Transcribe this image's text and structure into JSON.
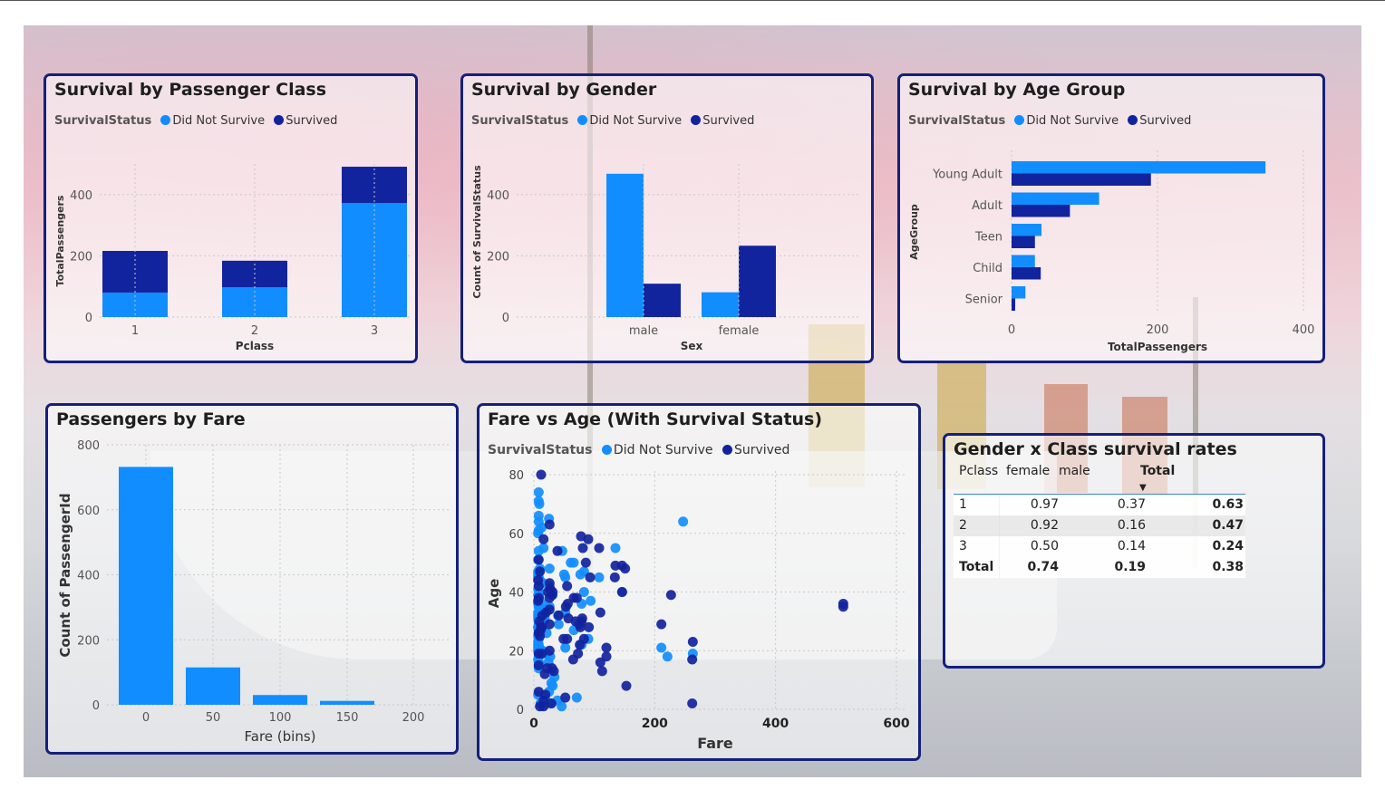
{
  "colors": {
    "did_not_survive": "#118dff",
    "survived": "#12239e",
    "border": "#14207a"
  },
  "legend": {
    "field": "SurvivalStatus",
    "did_not_survive": "Did Not Survive",
    "survived": "Survived"
  },
  "panel_class": {
    "title": "Survival by Passenger Class"
  },
  "panel_gender": {
    "title": "Survival by Gender"
  },
  "panel_age": {
    "title": "Survival by Age Group"
  },
  "panel_fare": {
    "title": "Passengers by Fare"
  },
  "panel_scatter": {
    "title": "Fare vs Age (With Survival Status)"
  },
  "panel_table": {
    "title": "Gender x Class survival rates",
    "headers": [
      "Pclass",
      "female",
      "male",
      "Total"
    ],
    "rows": [
      [
        "1",
        "0.97",
        "0.37",
        "0.63"
      ],
      [
        "2",
        "0.92",
        "0.16",
        "0.47"
      ],
      [
        "3",
        "0.50",
        "0.14",
        "0.24"
      ],
      [
        "Total",
        "0.74",
        "0.19",
        "0.38"
      ]
    ]
  },
  "chart_data": [
    {
      "type": "bar",
      "stacked": true,
      "categories": [
        "1",
        "2",
        "3"
      ],
      "series": [
        {
          "name": "Did Not Survive",
          "values": [
            80,
            97,
            372
          ]
        },
        {
          "name": "Survived",
          "values": [
            136,
            87,
            119
          ]
        }
      ],
      "xlabel": "Pclass",
      "ylabel": "TotalPassengers",
      "yticks": [
        0,
        200,
        400
      ],
      "ylim": [
        0,
        500
      ],
      "grid": true,
      "legend": "top-left"
    },
    {
      "type": "bar",
      "categories": [
        "male",
        "female"
      ],
      "series": [
        {
          "name": "Did Not Survive",
          "values": [
            468,
            81
          ]
        },
        {
          "name": "Survived",
          "values": [
            109,
            233
          ]
        }
      ],
      "xlabel": "Sex",
      "ylabel": "Count of SurvivalStatus",
      "yticks": [
        0,
        200,
        400
      ],
      "ylim": [
        0,
        500
      ],
      "grid": true,
      "legend": "top-left"
    },
    {
      "type": "bar",
      "orientation": "horizontal",
      "categories": [
        "Young Adult",
        "Adult",
        "Teen",
        "Child",
        "Senior"
      ],
      "series": [
        {
          "name": "Did Not Survive",
          "values": [
            348,
            120,
            41,
            32,
            19
          ]
        },
        {
          "name": "Survived",
          "values": [
            191,
            80,
            32,
            40,
            5
          ]
        }
      ],
      "xlabel": "TotalPassengers",
      "ylabel": "AgeGroup",
      "xticks": [
        0,
        200,
        400
      ],
      "xlim": [
        0,
        410
      ],
      "grid": true,
      "legend": "top-left"
    },
    {
      "type": "bar",
      "categories": [
        "0",
        "50",
        "100",
        "150",
        "200"
      ],
      "values": [
        732,
        115,
        30,
        12,
        0
      ],
      "xlabel": "Fare (bins)",
      "ylabel": "Count of PassengerId",
      "yticks": [
        0,
        200,
        400,
        600,
        800
      ],
      "ylim": [
        0,
        800
      ],
      "grid": true
    },
    {
      "type": "scatter",
      "xlabel": "Fare",
      "ylabel": "Age",
      "xticks": [
        0,
        200,
        400,
        600
      ],
      "yticks": [
        0,
        20,
        40,
        60,
        80
      ],
      "xlim": [
        0,
        600
      ],
      "ylim": [
        0,
        80
      ],
      "series": [
        {
          "name": "Did Not Survive",
          "points": [
            [
              7,
              22
            ],
            [
              8,
              35
            ],
            [
              8,
              54
            ],
            [
              21,
              2
            ],
            [
              8,
              27
            ],
            [
              7,
              20
            ],
            [
              31,
              39
            ],
            [
              8,
              14
            ],
            [
              16,
              55
            ],
            [
              29,
              2
            ],
            [
              18,
              31
            ],
            [
              26,
              35
            ],
            [
              13,
              34
            ],
            [
              7,
              28
            ],
            [
              8,
              66
            ],
            [
              8,
              42
            ],
            [
              52,
              21
            ],
            [
              8,
              18
            ],
            [
              21,
              19
            ],
            [
              146,
              40
            ],
            [
              7,
              28
            ],
            [
              9,
              21
            ],
            [
              52,
              45
            ],
            [
              83,
              40
            ],
            [
              8,
              61
            ],
            [
              9,
              70
            ],
            [
              9,
              40
            ],
            [
              8,
              26
            ],
            [
              8,
              71
            ],
            [
              7,
              45
            ],
            [
              10,
              48
            ],
            [
              79,
              36
            ],
            [
              8,
              26
            ],
            [
              8,
              24
            ],
            [
              7,
              32
            ],
            [
              15,
              30
            ],
            [
              8,
              29
            ],
            [
              8,
              64
            ],
            [
              7,
              36
            ],
            [
              61,
              50
            ],
            [
              15,
              19
            ],
            [
              7,
              23
            ],
            [
              14,
              20
            ],
            [
              24,
              16
            ],
            [
              7,
              47
            ],
            [
              25,
              65
            ],
            [
              7,
              51
            ],
            [
              7,
              60
            ],
            [
              10,
              44
            ],
            [
              8,
              30
            ],
            [
              77,
              46
            ],
            [
              9,
              38
            ],
            [
              7,
              25
            ],
            [
              47,
              54
            ],
            [
              27,
              18
            ],
            [
              7,
              17
            ],
            [
              8,
              74
            ],
            [
              8,
              16
            ],
            [
              8,
              28
            ],
            [
              26,
              42
            ],
            [
              10,
              33
            ],
            [
              8,
              30
            ],
            [
              13,
              62
            ],
            [
              7,
              31
            ],
            [
              7,
              39
            ],
            [
              21,
              26
            ],
            [
              11,
              2
            ],
            [
              8,
              24
            ],
            [
              15,
              43
            ],
            [
              9,
              31
            ],
            [
              7,
              41
            ],
            [
              41,
              29
            ],
            [
              8,
              22
            ],
            [
              7,
              21
            ],
            [
              7,
              46
            ],
            [
              8,
              19
            ],
            [
              9,
              35
            ],
            [
              7,
              33
            ],
            [
              14,
              36
            ],
            [
              8,
              45
            ],
            [
              26,
              48
            ],
            [
              247,
              64
            ],
            [
              263,
              19
            ],
            [
              221,
              18
            ],
            [
              211,
              21
            ],
            [
              108,
              45
            ],
            [
              94,
              37
            ],
            [
              83,
              47
            ],
            [
              135,
              55
            ],
            [
              66,
              50
            ],
            [
              52,
              33
            ],
            [
              79,
              22
            ],
            [
              50,
              46
            ],
            [
              40,
              32
            ],
            [
              22,
              34
            ],
            [
              66,
              27
            ],
            [
              90,
              24
            ],
            [
              71,
              4
            ],
            [
              39,
              3
            ],
            [
              31,
              8
            ],
            [
              34,
              11
            ],
            [
              46,
              1
            ],
            [
              25,
              6
            ],
            [
              29,
              9
            ],
            [
              7,
              5
            ],
            [
              20,
              3
            ],
            [
              9,
              44
            ],
            [
              8,
              39
            ]
          ]
        },
        {
          "name": "Survived",
          "points": [
            [
              71,
              38
            ],
            [
              8,
              26
            ],
            [
              53,
              35
            ],
            [
              11,
              27
            ],
            [
              30,
              14
            ],
            [
              16,
              58
            ],
            [
              26,
              34
            ],
            [
              8,
              15
            ],
            [
              12,
              28
            ],
            [
              8,
              38
            ],
            [
              26,
              38
            ],
            [
              8,
              19
            ],
            [
              18,
              12
            ],
            [
              146,
              49
            ],
            [
              78,
              59
            ],
            [
              26,
              29
            ],
            [
              30,
              39
            ],
            [
              16,
              3
            ],
            [
              13,
              19
            ],
            [
              8,
              26
            ],
            [
              80,
              31
            ],
            [
              13,
              28
            ],
            [
              55,
              42
            ],
            [
              10,
              25
            ],
            [
              77,
              28
            ],
            [
              83,
              24
            ],
            [
              10,
              1
            ],
            [
              263,
              23
            ],
            [
              56,
              36
            ],
            [
              66,
              38
            ],
            [
              146,
              40
            ],
            [
              10,
              47
            ],
            [
              8,
              42
            ],
            [
              9,
              30
            ],
            [
              41,
              32
            ],
            [
              512,
              35
            ],
            [
              512,
              36
            ],
            [
              76,
              22
            ],
            [
              110,
              16
            ],
            [
              90,
              58
            ],
            [
              26,
              43
            ],
            [
              135,
              49
            ],
            [
              20,
              33
            ],
            [
              57,
              31
            ],
            [
              23,
              40
            ],
            [
              8,
              51
            ],
            [
              211,
              29
            ],
            [
              227,
              39
            ],
            [
              151,
              48
            ],
            [
              120,
              21
            ],
            [
              79,
              30
            ],
            [
              93,
              45
            ],
            [
              86,
              50
            ],
            [
              19,
              5
            ],
            [
              29,
              2
            ],
            [
              14,
              32
            ],
            [
              26,
              63
            ],
            [
              7,
              44
            ],
            [
              22,
              14
            ],
            [
              39,
              54
            ],
            [
              73,
              19
            ],
            [
              55,
              24
            ],
            [
              69,
              30
            ],
            [
              27,
              41
            ],
            [
              7,
              37
            ],
            [
              120,
              18
            ],
            [
              65,
              17
            ],
            [
              81,
              55
            ],
            [
              75,
              29
            ],
            [
              33,
              13
            ],
            [
              12,
              80
            ],
            [
              262,
              17
            ],
            [
              262,
              2
            ],
            [
              113,
              13
            ],
            [
              134,
              45
            ],
            [
              153,
              8
            ],
            [
              91,
              28
            ],
            [
              108,
              55
            ],
            [
              110,
              33
            ],
            [
              26,
              20
            ],
            [
              52,
              4
            ],
            [
              49,
              24
            ],
            [
              31,
              40
            ],
            [
              16,
              1
            ],
            [
              8,
              6
            ]
          ]
        }
      ],
      "legend": "top-left"
    }
  ]
}
